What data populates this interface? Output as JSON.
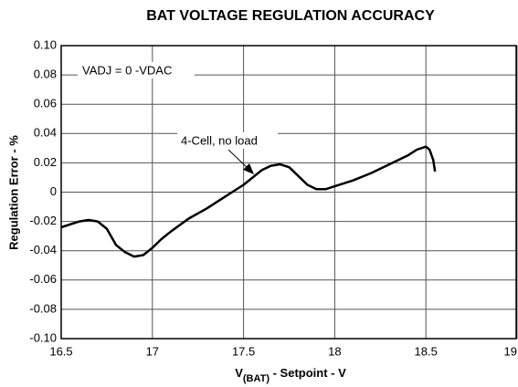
{
  "chart_data": {
    "type": "line",
    "title": "BAT VOLTAGE REGULATION ACCURACY",
    "x_label": [
      "V",
      "(BAT)",
      " - Setpoint - V"
    ],
    "y_label": "Regulation Error - %",
    "annotations": [
      "VADJ = 0 -VDAC",
      "4-Cell, no load"
    ],
    "x": [
      16.5,
      16.6,
      16.65,
      16.7,
      16.75,
      16.8,
      16.85,
      16.9,
      16.95,
      17.0,
      17.05,
      17.1,
      17.2,
      17.3,
      17.4,
      17.5,
      17.6,
      17.65,
      17.7,
      17.75,
      17.8,
      17.85,
      17.9,
      17.95,
      18.0,
      18.1,
      18.2,
      18.3,
      18.4,
      18.45,
      18.5,
      18.52,
      18.54,
      18.55
    ],
    "series": [
      {
        "name": "4-Cell, no load",
        "color": "#000000",
        "values": [
          -0.024,
          -0.02,
          -0.019,
          -0.02,
          -0.025,
          -0.036,
          -0.041,
          -0.044,
          -0.043,
          -0.038,
          -0.032,
          -0.027,
          -0.018,
          -0.011,
          -0.003,
          0.005,
          0.015,
          0.018,
          0.019,
          0.017,
          0.011,
          0.005,
          0.002,
          0.002,
          0.004,
          0.008,
          0.013,
          0.019,
          0.025,
          0.029,
          0.031,
          0.029,
          0.022,
          0.014
        ]
      }
    ],
    "xlim": [
      16.5,
      19
    ],
    "xticks": [
      16.5,
      17,
      17.5,
      18,
      18.5,
      19
    ],
    "ylim": [
      -0.1,
      0.1
    ],
    "yticks": [
      {
        "value": -0.1,
        "label": "-0.10"
      },
      -0.08,
      -0.06,
      -0.04,
      -0.02,
      0,
      0.02,
      0.04,
      0.06,
      0.08,
      {
        "value": 0.1,
        "label": "0.10"
      }
    ],
    "grid": true
  }
}
